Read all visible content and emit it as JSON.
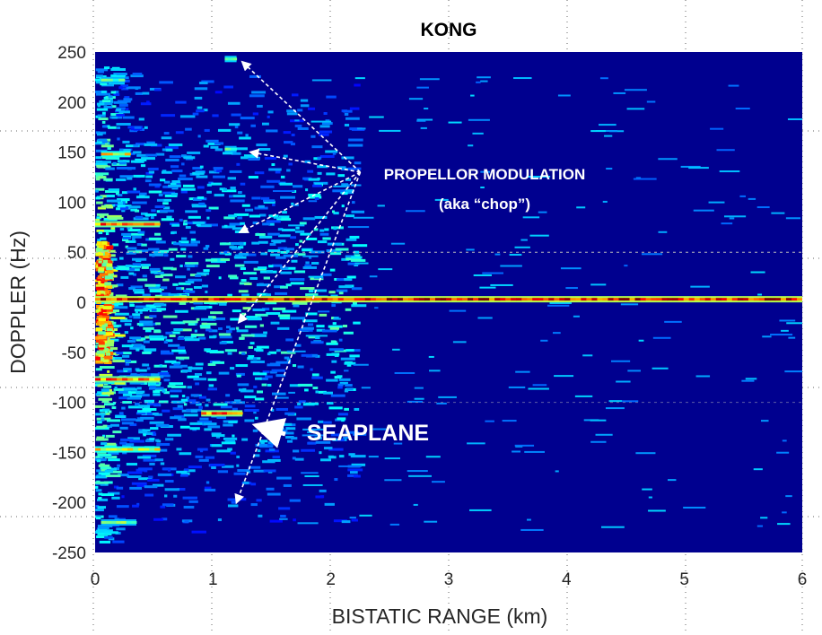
{
  "chart_data": {
    "type": "heatmap",
    "title": "KONG",
    "xlabel": "BISTATIC RANGE (km)",
    "ylabel": "DOPPLER (Hz)",
    "xlim": [
      0,
      6
    ],
    "ylim": [
      -250,
      250
    ],
    "x_ticks": [
      0,
      1,
      2,
      3,
      4,
      5,
      6
    ],
    "y_ticks": [
      250,
      200,
      150,
      100,
      50,
      0,
      -50,
      -100,
      -150,
      -200,
      -250
    ],
    "colormap": "jet",
    "background_color": "#00008f",
    "bands": [
      {
        "doppler": 3,
        "x_start": 0.0,
        "x_end": 6.0,
        "intensity": 1.0
      },
      {
        "doppler": 78,
        "x_start": 0.0,
        "x_end": 0.55,
        "intensity": 0.85
      },
      {
        "doppler": -77,
        "x_start": 0.0,
        "x_end": 0.55,
        "intensity": 0.85
      },
      {
        "doppler": 148,
        "x_start": 0.05,
        "x_end": 0.3,
        "intensity": 0.7
      },
      {
        "doppler": -147,
        "x_start": 0.0,
        "x_end": 0.55,
        "intensity": 0.7
      },
      {
        "doppler": 222,
        "x_start": 0.05,
        "x_end": 0.25,
        "intensity": 0.55
      },
      {
        "doppler": -220,
        "x_start": 0.05,
        "x_end": 0.35,
        "intensity": 0.55
      },
      {
        "doppler": 243,
        "x_start": 1.1,
        "x_end": 1.2,
        "intensity": 0.6
      },
      {
        "doppler": 153,
        "x_start": 1.1,
        "x_end": 1.2,
        "intensity": 0.55
      },
      {
        "doppler": -111,
        "x_start": 0.9,
        "x_end": 1.25,
        "intensity": 0.9
      }
    ],
    "annotations": [
      {
        "text_line1": "PROPELLOR MODULATION",
        "text_line2": "(aka “chop”)",
        "origin": [
          2.25,
          130
        ],
        "arrow_targets": [
          [
            1.25,
            240
          ],
          [
            1.32,
            150
          ],
          [
            1.23,
            70
          ],
          [
            1.22,
            -20
          ],
          [
            1.2,
            -200
          ]
        ]
      },
      {
        "text": "SEAPLANE",
        "target": [
          1.35,
          -120
        ]
      }
    ]
  }
}
